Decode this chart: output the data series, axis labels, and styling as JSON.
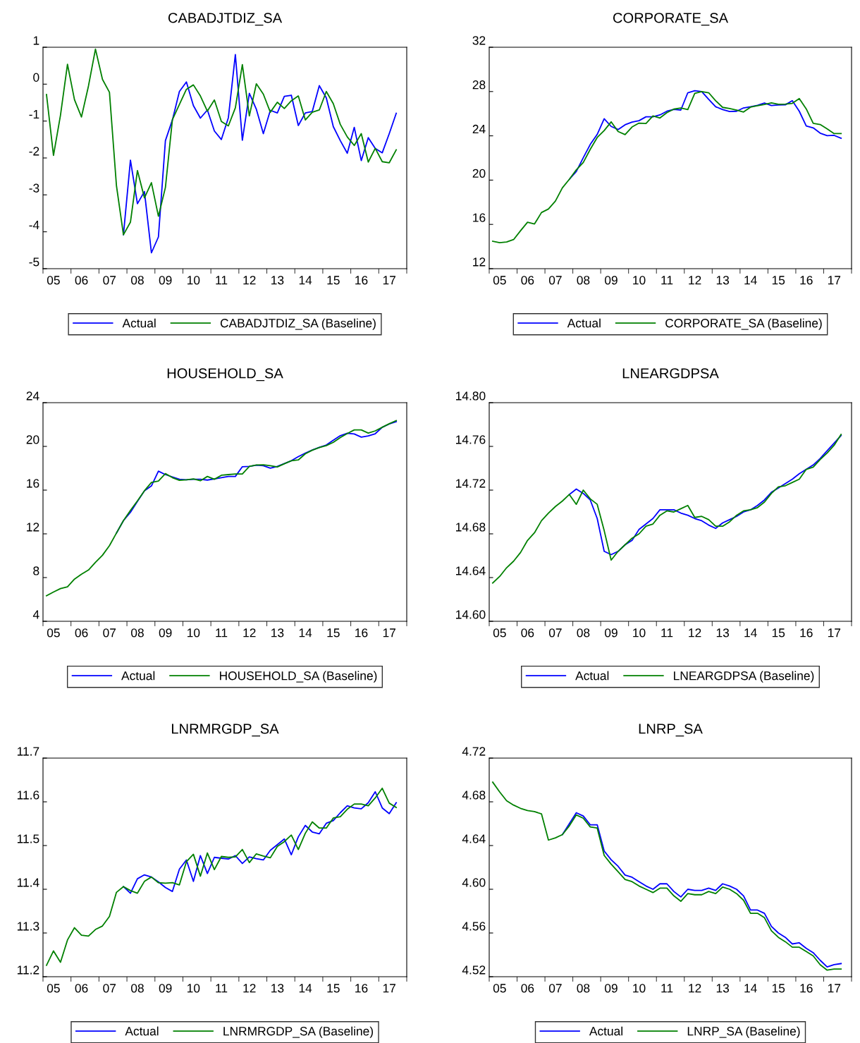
{
  "chart_data": [
    {
      "type": "line",
      "title": "CABADJTDIZ_SA",
      "legend": "bottom",
      "grid": false,
      "categories": [
        null,
        "05",
        null,
        null,
        null,
        "06",
        null,
        null,
        null,
        "07",
        null,
        null,
        null,
        "08",
        null,
        null,
        null,
        "09",
        null,
        null,
        null,
        "10",
        null,
        null,
        null,
        "11",
        null,
        null,
        null,
        "12",
        null,
        null,
        null,
        "13",
        null,
        null,
        null,
        "14",
        null,
        null,
        null,
        "15",
        null,
        null,
        null,
        "16",
        null,
        null,
        null,
        "17",
        null
      ],
      "ylim": [
        -5,
        1
      ],
      "yticks": [
        -5,
        -4,
        -3,
        -2,
        -1,
        0,
        1
      ],
      "series": [
        {
          "name": "Actual",
          "color": "#0000ff",
          "values": [
            null,
            null,
            null,
            null,
            null,
            null,
            null,
            null,
            null,
            null,
            null,
            -4.08,
            -2.06,
            -3.24,
            -2.91,
            -4.57,
            -4.14,
            -1.53,
            -0.97,
            -0.2,
            0.06,
            -0.58,
            -0.92,
            -0.7,
            -1.27,
            -1.5,
            -0.91,
            0.8,
            -1.52,
            -0.25,
            -0.68,
            -1.34,
            -0.71,
            -0.78,
            -0.33,
            -0.3,
            -1.12,
            -0.78,
            -0.74,
            -0.04,
            -0.37,
            -1.15,
            -1.53,
            -1.87,
            -1.17,
            -2.07,
            -1.45,
            -1.74,
            -1.86,
            -1.34,
            -0.79
          ]
        },
        {
          "name": "CABADJTDIZ_SA (Baseline)",
          "color": "#008000",
          "values": [
            -0.28,
            -1.93,
            -0.84,
            0.54,
            -0.42,
            -0.89,
            -0.05,
            0.95,
            0.13,
            -0.22,
            -2.75,
            -4.08,
            -3.74,
            -2.34,
            -3.08,
            -2.67,
            -3.58,
            -2.8,
            -0.96,
            -0.55,
            -0.14,
            -0.02,
            -0.32,
            -0.73,
            -0.43,
            -1.01,
            -1.13,
            -0.64,
            0.53,
            -0.86,
            0.01,
            -0.27,
            -0.76,
            -0.49,
            -0.66,
            -0.45,
            -0.32,
            -0.97,
            -0.76,
            -0.7,
            -0.2,
            -0.53,
            -1.09,
            -1.43,
            -1.66,
            -1.34,
            -2.11,
            -1.74,
            -2.1,
            -2.13,
            -1.78
          ]
        }
      ]
    },
    {
      "type": "line",
      "title": "CORPORATE_SA",
      "legend": "bottom",
      "grid": false,
      "categories": [
        null,
        "05",
        null,
        null,
        null,
        "06",
        null,
        null,
        null,
        "07",
        null,
        null,
        null,
        "08",
        null,
        null,
        null,
        "09",
        null,
        null,
        null,
        "10",
        null,
        null,
        null,
        "11",
        null,
        null,
        null,
        "12",
        null,
        null,
        null,
        "13",
        null,
        null,
        null,
        "14",
        null,
        null,
        null,
        "15",
        null,
        null,
        null,
        "16",
        null,
        null,
        null,
        "17",
        null
      ],
      "ylim": [
        12,
        32
      ],
      "yticks": [
        12,
        16,
        20,
        24,
        28,
        32
      ],
      "series": [
        {
          "name": "Actual",
          "color": "#0000ff",
          "values": [
            null,
            null,
            null,
            null,
            null,
            null,
            null,
            null,
            null,
            null,
            null,
            20.07,
            20.78,
            22.02,
            23.22,
            24.13,
            25.54,
            24.85,
            24.57,
            25.0,
            25.24,
            25.37,
            25.72,
            25.72,
            25.89,
            26.22,
            26.39,
            26.33,
            27.89,
            28.07,
            28.0,
            27.3,
            26.63,
            26.37,
            26.2,
            26.22,
            26.52,
            26.63,
            26.76,
            26.96,
            26.74,
            26.78,
            26.8,
            27.17,
            26.22,
            24.89,
            24.72,
            24.24,
            24.02,
            24.04,
            23.78
          ]
        },
        {
          "name": "CORPORATE_SA (Baseline)",
          "color": "#008000",
          "values": [
            14.48,
            14.35,
            14.41,
            14.63,
            15.43,
            16.2,
            16.04,
            17.07,
            17.39,
            18.11,
            19.3,
            20.07,
            20.93,
            21.59,
            22.78,
            23.85,
            24.48,
            25.26,
            24.39,
            24.11,
            24.8,
            25.15,
            25.11,
            25.8,
            25.61,
            26.09,
            26.41,
            26.52,
            26.37,
            27.83,
            28.0,
            27.89,
            27.17,
            26.57,
            26.46,
            26.33,
            26.15,
            26.59,
            26.72,
            26.83,
            26.98,
            26.85,
            26.87,
            26.93,
            27.37,
            26.43,
            25.13,
            25.02,
            24.63,
            24.2,
            24.2
          ]
        }
      ]
    },
    {
      "type": "line",
      "title": "HOUSEHOLD_SA",
      "legend": "bottom",
      "grid": false,
      "categories": [
        null,
        "05",
        null,
        null,
        null,
        "06",
        null,
        null,
        null,
        "07",
        null,
        null,
        null,
        "08",
        null,
        null,
        null,
        "09",
        null,
        null,
        null,
        "10",
        null,
        null,
        null,
        "11",
        null,
        null,
        null,
        "12",
        null,
        null,
        null,
        "13",
        null,
        null,
        null,
        "14",
        null,
        null,
        null,
        "15",
        null,
        null,
        null,
        "16",
        null,
        null,
        null,
        "17",
        null
      ],
      "ylim": [
        4,
        24
      ],
      "yticks": [
        4,
        8,
        12,
        16,
        20,
        24
      ],
      "series": [
        {
          "name": "Actual",
          "color": "#0000ff",
          "values": [
            null,
            null,
            null,
            null,
            null,
            null,
            null,
            null,
            null,
            null,
            12.07,
            13.21,
            13.97,
            14.96,
            15.94,
            16.38,
            17.73,
            17.42,
            17.21,
            16.99,
            16.94,
            16.99,
            16.99,
            16.92,
            17.03,
            17.14,
            17.25,
            17.25,
            18.14,
            18.17,
            18.28,
            18.23,
            18.01,
            18.17,
            18.43,
            18.69,
            19.06,
            19.39,
            19.67,
            19.91,
            20.13,
            20.57,
            20.98,
            21.2,
            21.14,
            20.85,
            20.96,
            21.16,
            21.75,
            22.05,
            22.27
          ]
        },
        {
          "name": "HOUSEHOLD_SA (Baseline)",
          "color": "#008000",
          "values": [
            6.33,
            6.68,
            6.99,
            7.16,
            7.86,
            8.3,
            8.69,
            9.39,
            10.04,
            10.92,
            12.07,
            13.21,
            14.15,
            15.02,
            15.94,
            16.7,
            16.83,
            17.51,
            17.14,
            16.9,
            16.94,
            17.03,
            16.86,
            17.25,
            16.99,
            17.36,
            17.42,
            17.47,
            17.47,
            18.17,
            18.3,
            18.32,
            18.23,
            18.12,
            18.41,
            18.69,
            18.76,
            19.32,
            19.65,
            19.89,
            20.07,
            20.37,
            20.81,
            21.18,
            21.51,
            21.51,
            21.22,
            21.42,
            21.75,
            22.07,
            22.36
          ]
        }
      ]
    },
    {
      "type": "line",
      "title": "LNEARGDPSA",
      "legend": "bottom",
      "grid": false,
      "categories": [
        null,
        "05",
        null,
        null,
        null,
        "06",
        null,
        null,
        null,
        "07",
        null,
        null,
        null,
        "08",
        null,
        null,
        null,
        "09",
        null,
        null,
        null,
        "10",
        null,
        null,
        null,
        "11",
        null,
        null,
        null,
        "12",
        null,
        null,
        null,
        "13",
        null,
        null,
        null,
        "14",
        null,
        null,
        null,
        "15",
        null,
        null,
        null,
        "16",
        null,
        null,
        null,
        "17",
        null
      ],
      "ylim": [
        14.6,
        14.8
      ],
      "yticks": [
        {
          "value": 14.6,
          "label": "14.60"
        },
        {
          "value": 14.64,
          "label": "14.64"
        },
        {
          "value": 14.68,
          "label": "14.68"
        },
        {
          "value": 14.72,
          "label": "14.72"
        },
        {
          "value": 14.76,
          "label": "14.76"
        },
        {
          "value": 14.8,
          "label": "14.80"
        }
      ],
      "series": [
        {
          "name": "Actual",
          "color": "#0000ff",
          "values": [
            null,
            null,
            null,
            null,
            null,
            null,
            null,
            null,
            null,
            null,
            null,
            14.716,
            14.721,
            14.717,
            14.711,
            14.694,
            14.664,
            14.661,
            14.664,
            14.67,
            14.674,
            14.684,
            14.689,
            14.694,
            14.702,
            14.702,
            14.702,
            14.699,
            14.697,
            14.694,
            14.692,
            14.688,
            14.685,
            14.69,
            14.693,
            14.696,
            14.7,
            14.702,
            14.706,
            14.711,
            14.718,
            14.722,
            14.726,
            14.73,
            14.735,
            14.739,
            14.743,
            14.749,
            14.756,
            14.763,
            14.77
          ]
        },
        {
          "name": "LNEARGDPSA (Baseline)",
          "color": "#008000",
          "values": [
            14.635,
            14.641,
            14.649,
            14.655,
            14.663,
            14.674,
            14.681,
            14.692,
            14.699,
            14.705,
            14.71,
            14.716,
            14.707,
            14.72,
            14.712,
            14.707,
            14.683,
            14.656,
            14.664,
            14.67,
            14.676,
            14.68,
            14.687,
            14.689,
            14.697,
            14.701,
            14.7,
            14.703,
            14.706,
            14.695,
            14.696,
            14.693,
            14.687,
            14.687,
            14.691,
            14.697,
            14.701,
            14.702,
            14.704,
            14.709,
            14.717,
            14.723,
            14.724,
            14.727,
            14.73,
            14.739,
            14.741,
            14.748,
            14.754,
            14.761,
            14.771
          ]
        }
      ]
    },
    {
      "type": "line",
      "title": "LNRMRGDP_SA",
      "legend": "bottom",
      "grid": false,
      "categories": [
        null,
        "05",
        null,
        null,
        null,
        "06",
        null,
        null,
        null,
        "07",
        null,
        null,
        null,
        "08",
        null,
        null,
        null,
        "09",
        null,
        null,
        null,
        "10",
        null,
        null,
        null,
        "11",
        null,
        null,
        null,
        "12",
        null,
        null,
        null,
        "13",
        null,
        null,
        null,
        "14",
        null,
        null,
        null,
        "15",
        null,
        null,
        null,
        "16",
        null,
        null,
        null,
        "17",
        null
      ],
      "ylim": [
        11.2,
        11.7
      ],
      "yticks": [
        11.2,
        11.3,
        11.4,
        11.5,
        11.6,
        11.7
      ],
      "series": [
        {
          "name": "Actual",
          "color": "#0000ff",
          "values": [
            null,
            null,
            null,
            null,
            null,
            null,
            null,
            null,
            null,
            null,
            null,
            11.406,
            11.391,
            11.424,
            11.433,
            11.428,
            11.417,
            11.404,
            11.395,
            11.446,
            11.467,
            11.418,
            11.477,
            11.436,
            11.473,
            11.471,
            11.469,
            11.477,
            11.459,
            11.474,
            11.47,
            11.467,
            11.489,
            11.502,
            11.515,
            11.479,
            11.52,
            11.546,
            11.531,
            11.527,
            11.551,
            11.557,
            11.575,
            11.591,
            11.586,
            11.584,
            11.598,
            11.623,
            11.586,
            11.573,
            11.598
          ]
        },
        {
          "name": "LNRMRGDP_SA (Baseline)",
          "color": "#008000",
          "values": [
            11.226,
            11.259,
            11.233,
            11.284,
            11.312,
            11.295,
            11.293,
            11.308,
            11.316,
            11.338,
            11.393,
            11.406,
            11.397,
            11.391,
            11.418,
            11.428,
            11.415,
            11.414,
            11.415,
            11.41,
            11.463,
            11.48,
            11.43,
            11.483,
            11.445,
            11.475,
            11.473,
            11.474,
            11.491,
            11.461,
            11.481,
            11.476,
            11.472,
            11.498,
            11.509,
            11.524,
            11.491,
            11.528,
            11.554,
            11.54,
            11.54,
            11.563,
            11.566,
            11.583,
            11.595,
            11.595,
            11.591,
            11.609,
            11.631,
            11.597,
            11.587
          ]
        }
      ]
    },
    {
      "type": "line",
      "title": "LNRP_SA",
      "legend": "bottom",
      "grid": false,
      "categories": [
        null,
        "05",
        null,
        null,
        null,
        "06",
        null,
        null,
        null,
        "07",
        null,
        null,
        null,
        "08",
        null,
        null,
        null,
        "09",
        null,
        null,
        null,
        "10",
        null,
        null,
        null,
        "11",
        null,
        null,
        null,
        "12",
        null,
        null,
        null,
        "13",
        null,
        null,
        null,
        "14",
        null,
        null,
        null,
        "15",
        null,
        null,
        null,
        "16",
        null,
        null,
        null,
        "17",
        null
      ],
      "ylim": [
        4.52,
        4.72
      ],
      "yticks": [
        4.52,
        4.56,
        {
          "value": 4.6,
          "label": "4.60"
        },
        4.64,
        4.68,
        4.72
      ],
      "series": [
        {
          "name": "Actual",
          "color": "#0000ff",
          "values": [
            null,
            null,
            null,
            null,
            null,
            null,
            null,
            null,
            null,
            null,
            4.65,
            4.66,
            4.67,
            4.667,
            4.659,
            4.659,
            4.635,
            4.627,
            4.621,
            4.613,
            4.611,
            4.607,
            4.603,
            4.6,
            4.605,
            4.605,
            4.598,
            4.593,
            4.6,
            4.599,
            4.599,
            4.601,
            4.599,
            4.605,
            4.603,
            4.6,
            4.594,
            4.581,
            4.581,
            4.578,
            4.566,
            4.56,
            4.556,
            4.55,
            4.551,
            4.546,
            4.542,
            4.535,
            4.529,
            4.531,
            4.532
          ]
        },
        {
          "name": "LNRP_SA (Baseline)",
          "color": "#008000",
          "values": [
            4.698,
            4.689,
            4.681,
            4.677,
            4.674,
            4.672,
            4.671,
            4.669,
            4.645,
            4.647,
            4.65,
            4.658,
            4.668,
            4.665,
            4.657,
            4.656,
            4.631,
            4.623,
            4.616,
            4.609,
            4.607,
            4.603,
            4.6,
            4.597,
            4.601,
            4.601,
            4.594,
            4.589,
            4.596,
            4.595,
            4.595,
            4.598,
            4.596,
            4.602,
            4.6,
            4.596,
            4.59,
            4.578,
            4.578,
            4.574,
            4.562,
            4.556,
            4.552,
            4.547,
            4.547,
            4.543,
            4.539,
            4.531,
            4.526,
            4.527,
            4.527
          ]
        }
      ]
    }
  ]
}
